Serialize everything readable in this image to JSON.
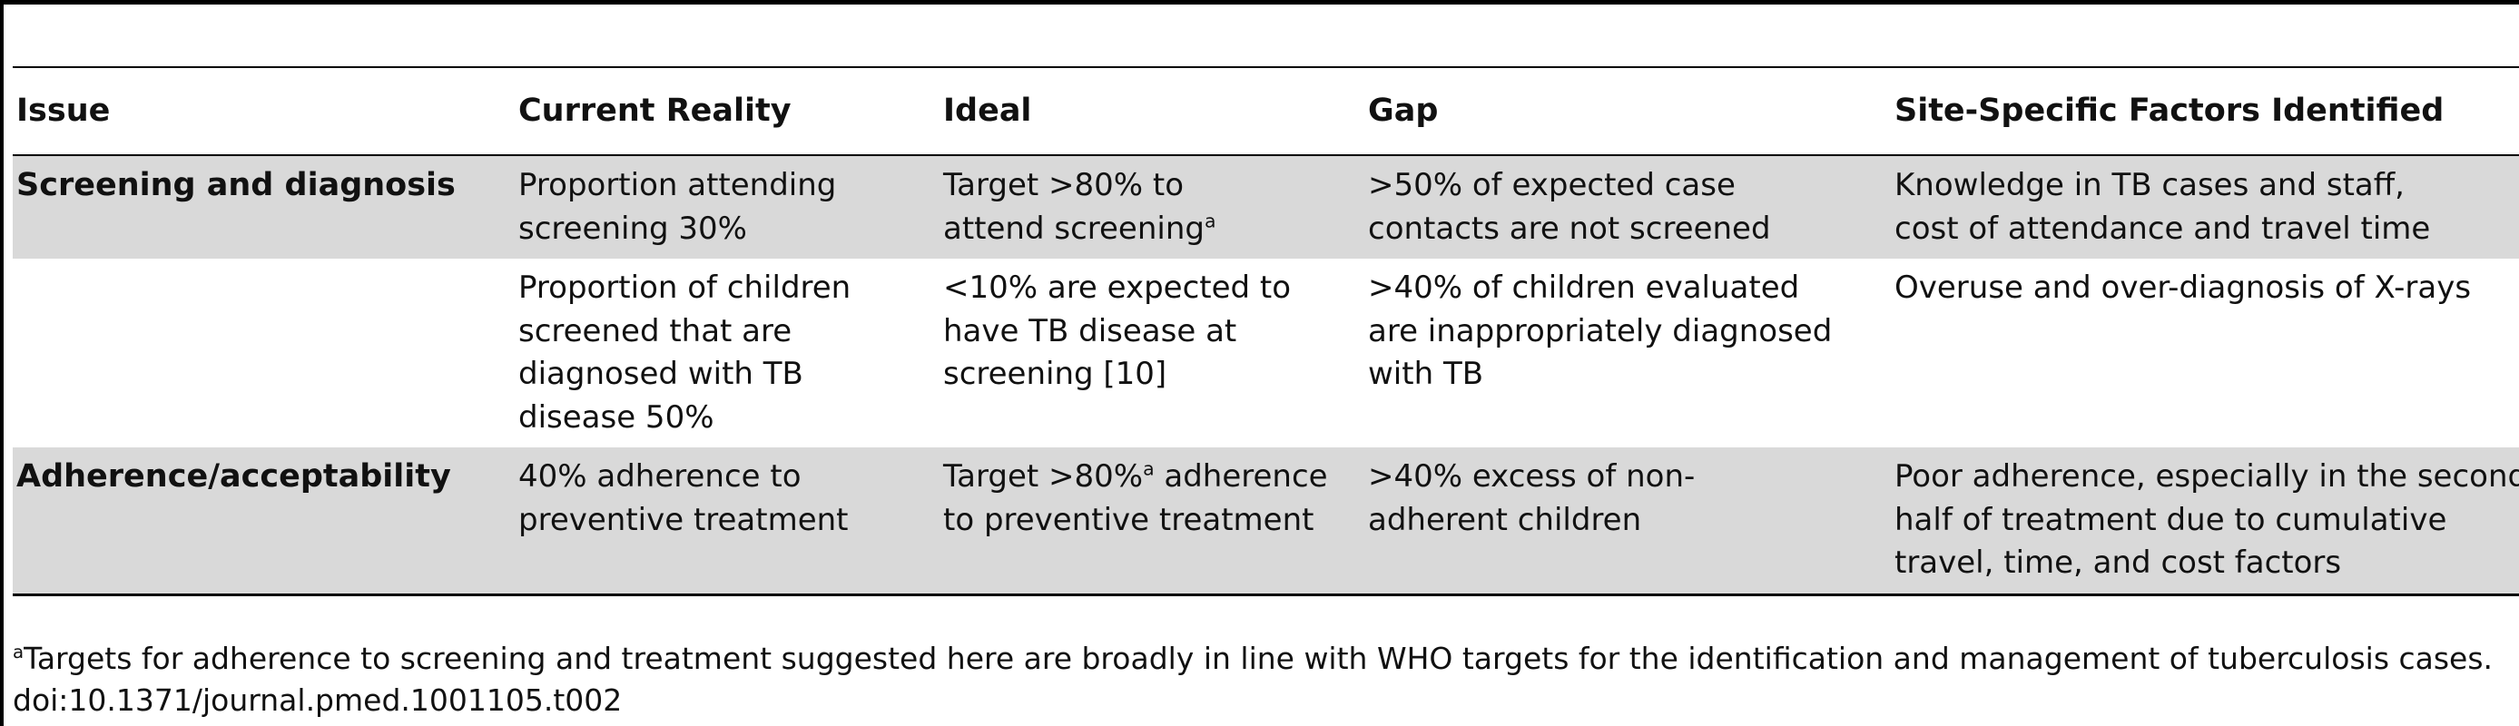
{
  "table": {
    "headers": [
      "Issue",
      "Current Reality",
      "Ideal",
      "Gap",
      "Site-Specific Factors Identified"
    ],
    "rows": [
      {
        "issue": "Screening and diagnosis",
        "current": [
          "Proportion attending",
          "screening 30%"
        ],
        "ideal": [
          "Target >80% to",
          "attend screening"
        ],
        "ideal_sup": "a",
        "gap": [
          ">50% of expected case",
          "contacts are not screened"
        ],
        "factors": [
          "Knowledge in TB cases and staff,",
          "cost of attendance and travel time"
        ]
      },
      {
        "issue": "",
        "current": [
          "Proportion of children",
          "screened that are",
          "diagnosed with TB",
          "disease 50%"
        ],
        "ideal": [
          "<10% are expected to",
          "have TB disease at",
          "screening [10]"
        ],
        "gap": [
          ">40% of children evaluated",
          "are inappropriately diagnosed",
          "with TB"
        ],
        "factors": [
          "Overuse and over-diagnosis of X-rays"
        ]
      },
      {
        "issue": "Adherence/acceptability",
        "current": [
          "40% adherence to",
          "preventive treatment"
        ],
        "ideal_pre": "Target >80%",
        "ideal_sup": "a",
        "ideal_post": " adherence",
        "ideal_line2": "to preventive treatment",
        "gap": [
          ">40% excess of non-",
          "adherent children"
        ],
        "factors": [
          "Poor adherence, especially in the second",
          "half of treatment due to cumulative",
          "travel, time, and cost factors"
        ]
      }
    ]
  },
  "footnote": {
    "marker": "a",
    "text": "Targets for adherence to screening and treatment suggested here are broadly in line with WHO targets for the identification and management of tuberculosis cases.",
    "doi": "doi:10.1371/journal.pmed.1001105.t002"
  }
}
